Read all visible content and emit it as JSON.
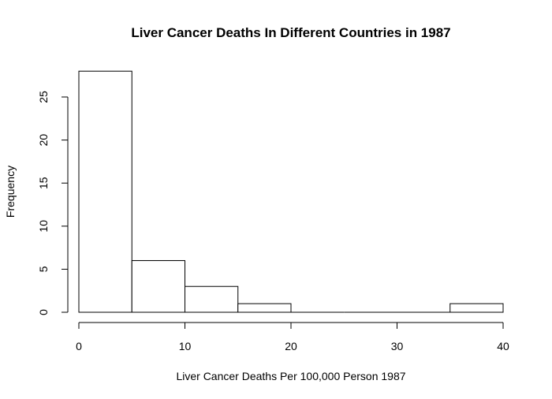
{
  "chart_data": {
    "type": "bar",
    "title": "Liver Cancer Deaths In Different Countries in 1987",
    "xlabel": "Liver Cancer Deaths Per 100,000 Person 1987",
    "ylabel": "Frequency",
    "bins": [
      {
        "from": 0,
        "to": 5,
        "count": 28
      },
      {
        "from": 5,
        "to": 10,
        "count": 6
      },
      {
        "from": 10,
        "to": 15,
        "count": 3
      },
      {
        "from": 15,
        "to": 20,
        "count": 1
      },
      {
        "from": 20,
        "to": 25,
        "count": 0
      },
      {
        "from": 25,
        "to": 30,
        "count": 0
      },
      {
        "from": 30,
        "to": 35,
        "count": 0
      },
      {
        "from": 35,
        "to": 40,
        "count": 1
      }
    ],
    "x_ticks": [
      0,
      10,
      20,
      30,
      40
    ],
    "y_ticks": [
      0,
      5,
      10,
      15,
      20,
      25
    ],
    "xlim": [
      0,
      40
    ],
    "ylim": [
      0,
      28
    ],
    "grid": false,
    "legend": "none"
  }
}
